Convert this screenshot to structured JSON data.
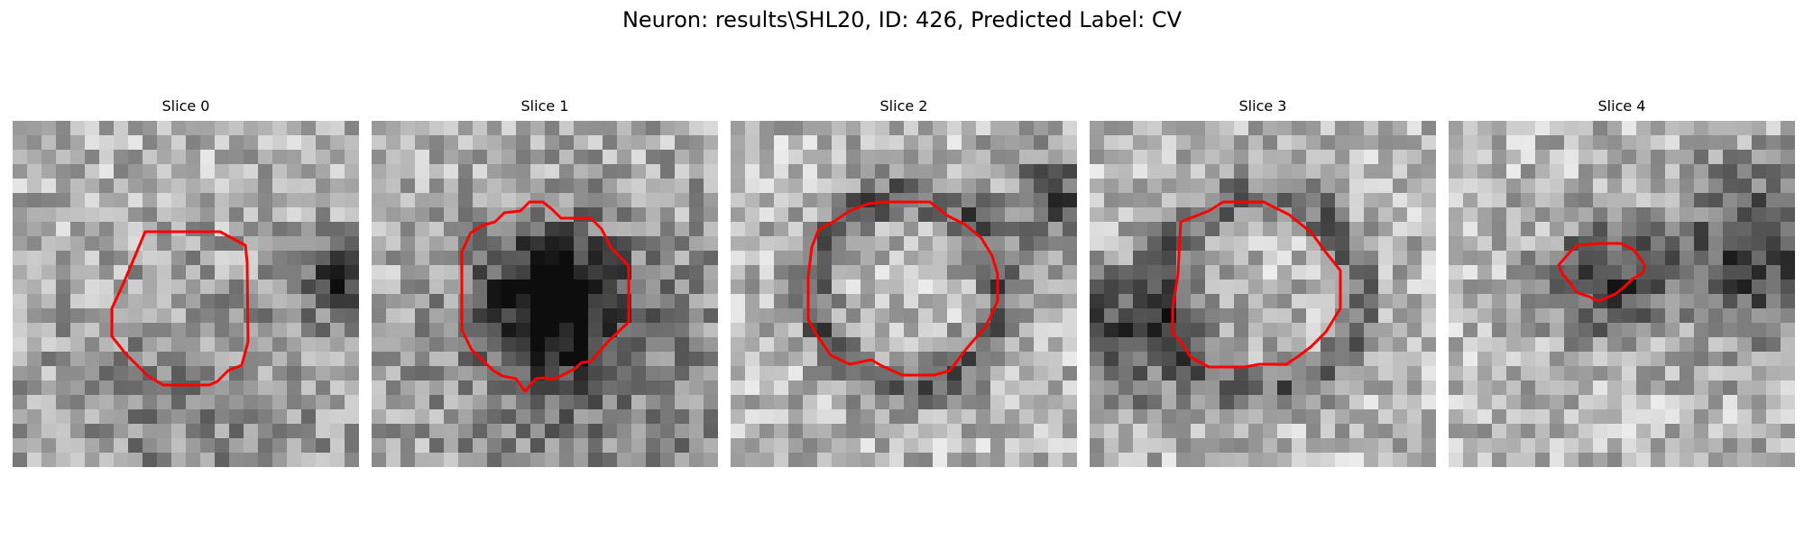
{
  "figure": {
    "title": "Neuron: results\\SHL20, ID: 426, Predicted Label: CV"
  },
  "colors": {
    "roi_outline": "#ff0000",
    "image_colormap": "grayscale"
  },
  "panels": [
    {
      "title": "Slice 0",
      "image": "grayscale-microscopy-slice",
      "roi": "red-contour"
    },
    {
      "title": "Slice 1",
      "image": "grayscale-microscopy-slice",
      "roi": "red-contour"
    },
    {
      "title": "Slice 2",
      "image": "grayscale-microscopy-slice",
      "roi": "red-contour"
    },
    {
      "title": "Slice 3",
      "image": "grayscale-microscopy-slice",
      "roi": "red-contour"
    },
    {
      "title": "Slice 4",
      "image": "grayscale-microscopy-slice",
      "roi": "red-contour"
    }
  ]
}
